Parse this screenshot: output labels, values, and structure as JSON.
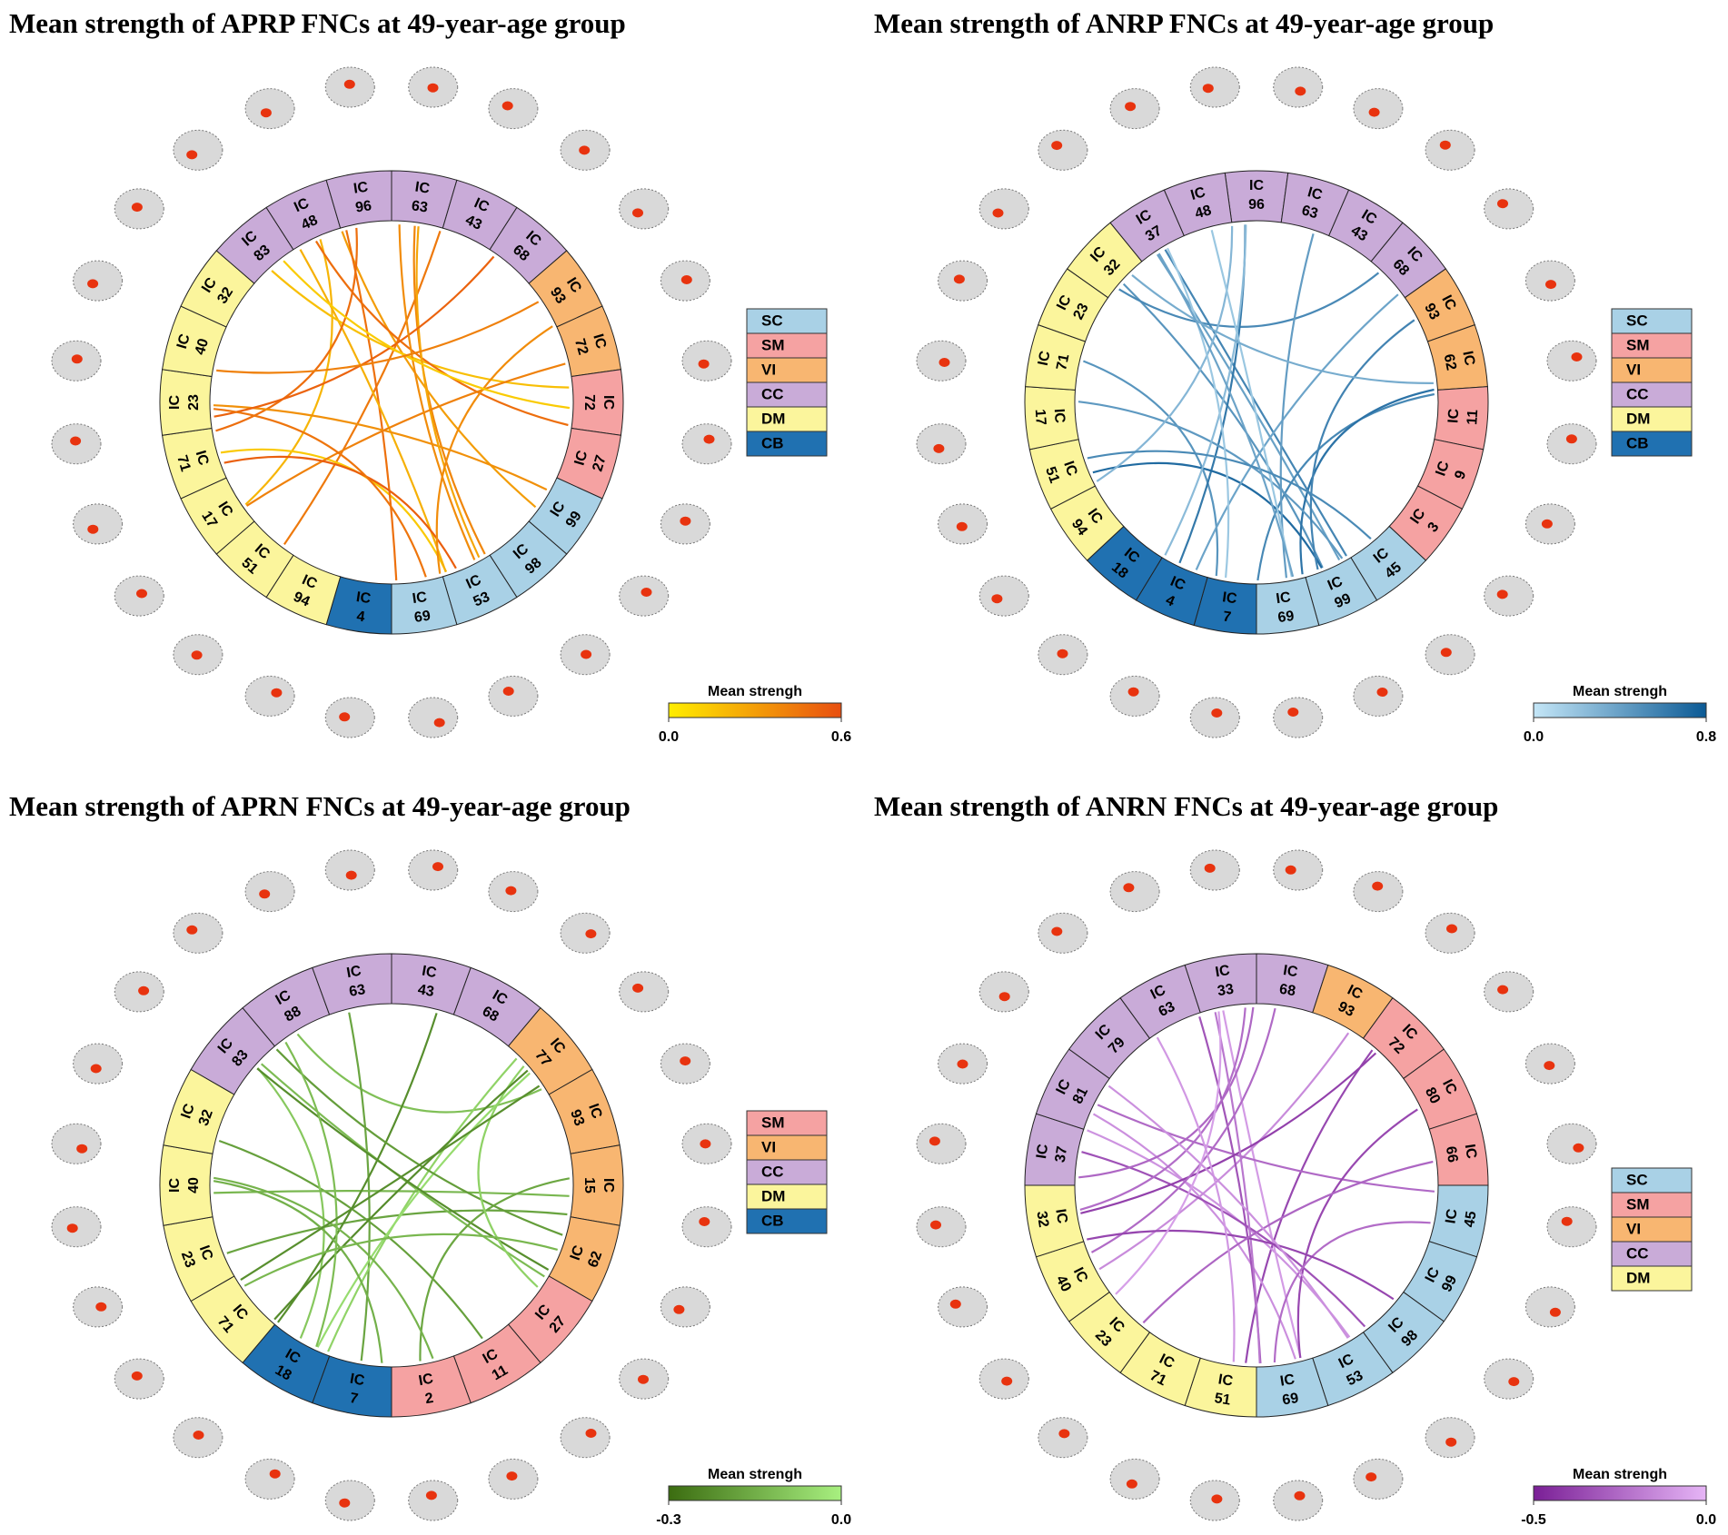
{
  "panels": [
    {
      "title": "Mean strength of APRP FNCs at 49-year-age group",
      "segments": [
        {
          "prefix": "IC",
          "number": "63",
          "module": "CC"
        },
        {
          "prefix": "IC",
          "number": "43",
          "module": "CC"
        },
        {
          "prefix": "IC",
          "number": "68",
          "module": "CC"
        },
        {
          "prefix": "IC",
          "number": "93",
          "module": "VI"
        },
        {
          "prefix": "IC",
          "number": "72",
          "module": "VI"
        },
        {
          "prefix": "IC",
          "number": "72",
          "module": "SM"
        },
        {
          "prefix": "IC",
          "number": "27",
          "module": "SM"
        },
        {
          "prefix": "IC",
          "number": "99",
          "module": "SC"
        },
        {
          "prefix": "IC",
          "number": "98",
          "module": "SC"
        },
        {
          "prefix": "IC",
          "number": "53",
          "module": "SC"
        },
        {
          "prefix": "IC",
          "number": "69",
          "module": "SC"
        },
        {
          "prefix": "IC",
          "number": "4",
          "module": "CB"
        },
        {
          "prefix": "IC",
          "number": "94",
          "module": "DM"
        },
        {
          "prefix": "IC",
          "number": "51",
          "module": "DM"
        },
        {
          "prefix": "IC",
          "number": "17",
          "module": "DM"
        },
        {
          "prefix": "IC",
          "number": "71",
          "module": "DM"
        },
        {
          "prefix": "IC",
          "number": "23",
          "module": "DM"
        },
        {
          "prefix": "IC",
          "number": "40",
          "module": "DM"
        },
        {
          "prefix": "IC",
          "number": "32",
          "module": "DM"
        },
        {
          "prefix": "IC",
          "number": "83",
          "module": "CC"
        },
        {
          "prefix": "IC",
          "number": "48",
          "module": "CC"
        },
        {
          "prefix": "IC",
          "number": "96",
          "module": "CC"
        }
      ],
      "legend": [
        {
          "name": "SC",
          "color": "#a9d1e6"
        },
        {
          "name": "SM",
          "color": "#f5a2a2"
        },
        {
          "name": "VI",
          "color": "#f8b671"
        },
        {
          "name": "CC",
          "color": "#c9abd8"
        },
        {
          "name": "DM",
          "color": "#fbf59c"
        },
        {
          "name": "CB",
          "color": "#2071b1"
        }
      ],
      "colorbar": {
        "label": "Mean strengh",
        "colors": [
          "#ffee00",
          "#e84e10"
        ],
        "ticks": [
          {
            "value": 0,
            "label": "0.0"
          },
          {
            "value": 0.6,
            "label": "0.6"
          }
        ]
      }
    },
    {
      "title": "Mean strength of ANRP FNCs at 49-year-age group",
      "segments": [
        {
          "prefix": "IC",
          "number": "96",
          "module": "CC"
        },
        {
          "prefix": "IC",
          "number": "63",
          "module": "CC"
        },
        {
          "prefix": "IC",
          "number": "43",
          "module": "CC"
        },
        {
          "prefix": "IC",
          "number": "68",
          "module": "CC"
        },
        {
          "prefix": "IC",
          "number": "93",
          "module": "VI"
        },
        {
          "prefix": "IC",
          "number": "62",
          "module": "VI"
        },
        {
          "prefix": "IC",
          "number": "11",
          "module": "SM"
        },
        {
          "prefix": "IC",
          "number": "9",
          "module": "SM"
        },
        {
          "prefix": "IC",
          "number": "3",
          "module": "SM"
        },
        {
          "prefix": "IC",
          "number": "45",
          "module": "SC"
        },
        {
          "prefix": "IC",
          "number": "99",
          "module": "SC"
        },
        {
          "prefix": "IC",
          "number": "69",
          "module": "SC"
        },
        {
          "prefix": "IC",
          "number": "7",
          "module": "CB"
        },
        {
          "prefix": "IC",
          "number": "4",
          "module": "CB"
        },
        {
          "prefix": "IC",
          "number": "18",
          "module": "CB"
        },
        {
          "prefix": "IC",
          "number": "94",
          "module": "DM"
        },
        {
          "prefix": "IC",
          "number": "51",
          "module": "DM"
        },
        {
          "prefix": "IC",
          "number": "17",
          "module": "DM"
        },
        {
          "prefix": "IC",
          "number": "71",
          "module": "DM"
        },
        {
          "prefix": "IC",
          "number": "23",
          "module": "DM"
        },
        {
          "prefix": "IC",
          "number": "32",
          "module": "DM"
        },
        {
          "prefix": "IC",
          "number": "37",
          "module": "CC"
        },
        {
          "prefix": "IC",
          "number": "48",
          "module": "CC"
        }
      ],
      "legend": [
        {
          "name": "SC",
          "color": "#a9d1e6"
        },
        {
          "name": "SM",
          "color": "#f5a2a2"
        },
        {
          "name": "VI",
          "color": "#f8b671"
        },
        {
          "name": "CC",
          "color": "#c9abd8"
        },
        {
          "name": "DM",
          "color": "#fbf59c"
        },
        {
          "name": "CB",
          "color": "#2071b1"
        }
      ],
      "colorbar": {
        "label": "Mean strengh",
        "colors": [
          "#c4e6f7",
          "#0b5a95"
        ],
        "ticks": [
          {
            "value": 0,
            "label": "0.0"
          },
          {
            "value": 0.8,
            "label": "0.8"
          }
        ]
      }
    },
    {
      "title": "Mean strength of APRN FNCs at 49-year-age group",
      "segments": [
        {
          "prefix": "IC",
          "number": "43",
          "module": "CC"
        },
        {
          "prefix": "IC",
          "number": "68",
          "module": "CC"
        },
        {
          "prefix": "IC",
          "number": "77",
          "module": "VI"
        },
        {
          "prefix": "IC",
          "number": "93",
          "module": "VI"
        },
        {
          "prefix": "IC",
          "number": "15",
          "module": "VI"
        },
        {
          "prefix": "IC",
          "number": "62",
          "module": "VI"
        },
        {
          "prefix": "IC",
          "number": "27",
          "module": "SM"
        },
        {
          "prefix": "IC",
          "number": "11",
          "module": "SM"
        },
        {
          "prefix": "IC",
          "number": "2",
          "module": "SM"
        },
        {
          "prefix": "IC",
          "number": "7",
          "module": "CB"
        },
        {
          "prefix": "IC",
          "number": "18",
          "module": "CB"
        },
        {
          "prefix": "IC",
          "number": "71",
          "module": "DM"
        },
        {
          "prefix": "IC",
          "number": "23",
          "module": "DM"
        },
        {
          "prefix": "IC",
          "number": "40",
          "module": "DM"
        },
        {
          "prefix": "IC",
          "number": "32",
          "module": "DM"
        },
        {
          "prefix": "IC",
          "number": "83",
          "module": "CC"
        },
        {
          "prefix": "IC",
          "number": "88",
          "module": "CC"
        },
        {
          "prefix": "IC",
          "number": "63",
          "module": "CC"
        }
      ],
      "legend": [
        {
          "name": "SM",
          "color": "#f5a2a2"
        },
        {
          "name": "VI",
          "color": "#f8b671"
        },
        {
          "name": "CC",
          "color": "#c9abd8"
        },
        {
          "name": "DM",
          "color": "#fbf59c"
        },
        {
          "name": "CB",
          "color": "#2071b1"
        }
      ],
      "colorbar": {
        "label": "Mean strengh",
        "colors": [
          "#3b6c10",
          "#a8f080"
        ],
        "ticks": [
          {
            "value": -0.3,
            "label": "-0.3"
          },
          {
            "value": 0,
            "label": "0.0"
          }
        ]
      }
    },
    {
      "title": "Mean strength of ANRN FNCs at 49-year-age group",
      "segments": [
        {
          "prefix": "IC",
          "number": "68",
          "module": "CC"
        },
        {
          "prefix": "IC",
          "number": "93",
          "module": "VI"
        },
        {
          "prefix": "IC",
          "number": "72",
          "module": "SM"
        },
        {
          "prefix": "IC",
          "number": "80",
          "module": "SM"
        },
        {
          "prefix": "IC",
          "number": "66",
          "module": "SM"
        },
        {
          "prefix": "IC",
          "number": "45",
          "module": "SC"
        },
        {
          "prefix": "IC",
          "number": "99",
          "module": "SC"
        },
        {
          "prefix": "IC",
          "number": "98",
          "module": "SC"
        },
        {
          "prefix": "IC",
          "number": "53",
          "module": "SC"
        },
        {
          "prefix": "IC",
          "number": "69",
          "module": "SC"
        },
        {
          "prefix": "IC",
          "number": "51",
          "module": "DM"
        },
        {
          "prefix": "IC",
          "number": "71",
          "module": "DM"
        },
        {
          "prefix": "IC",
          "number": "23",
          "module": "DM"
        },
        {
          "prefix": "IC",
          "number": "40",
          "module": "DM"
        },
        {
          "prefix": "IC",
          "number": "32",
          "module": "DM"
        },
        {
          "prefix": "IC",
          "number": "37",
          "module": "CC"
        },
        {
          "prefix": "IC",
          "number": "81",
          "module": "CC"
        },
        {
          "prefix": "IC",
          "number": "79",
          "module": "CC"
        },
        {
          "prefix": "IC",
          "number": "63",
          "module": "CC"
        },
        {
          "prefix": "IC",
          "number": "33",
          "module": "CC"
        }
      ],
      "legend": [
        {
          "name": "SC",
          "color": "#a9d1e6"
        },
        {
          "name": "SM",
          "color": "#f5a2a2"
        },
        {
          "name": "VI",
          "color": "#f8b671"
        },
        {
          "name": "CC",
          "color": "#c9abd8"
        },
        {
          "name": "DM",
          "color": "#fbf59c"
        }
      ],
      "colorbar": {
        "label": "Mean strengh",
        "colors": [
          "#7a1f96",
          "#e6b5f6"
        ],
        "ticks": [
          {
            "value": -0.5,
            "label": "-0.5"
          },
          {
            "value": 0,
            "label": "0.0"
          }
        ]
      }
    }
  ]
}
